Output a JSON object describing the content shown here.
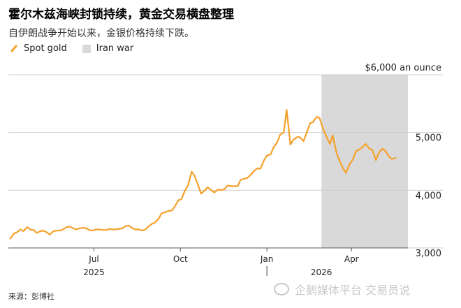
{
  "title": "霍尔木兹海峡封锁持续，黄金交易横盘整理",
  "subtitle": "自伊朗战争开始以来，金银价格持续下跌。",
  "legend": {
    "series_label": "Spot gold",
    "shade_label": "Iran war"
  },
  "source": "来源：彭博社",
  "watermark": "企鹅媒体平台 交易员说",
  "colors": {
    "line": "#f5a02a",
    "shade": "#d9d9d9",
    "grid": "#cccccc",
    "axis": "#555555"
  },
  "chart_data": {
    "type": "line",
    "title": "霍尔木兹海峡封锁持续，黄金交易横盘整理",
    "subtitle": "自伊朗战争开始以来，金银价格持续下跌。",
    "unit_label": "$6,000 an ounce",
    "ylim": [
      3000,
      6000
    ],
    "yticks": [
      {
        "value": 6000,
        "label": "$6,000 an ounce"
      },
      {
        "value": 5000,
        "label": "5,000"
      },
      {
        "value": 4000,
        "label": "4,000"
      },
      {
        "value": 3000,
        "label": "3,000"
      }
    ],
    "xlim": [
      "2025-04-01",
      "2026-05-31"
    ],
    "xticks": [
      {
        "date": "2025-07-01",
        "label": "Jul"
      },
      {
        "date": "2025-10-01",
        "label": "Oct"
      },
      {
        "date": "2026-01-01",
        "label": "Jan"
      },
      {
        "date": "2026-04-01",
        "label": "Apr"
      }
    ],
    "year_labels": [
      {
        "date": "2025-07-01",
        "label": "2025"
      },
      {
        "date": "2026-02-28",
        "label": "2026"
      }
    ],
    "year_divider": "2026-01-01",
    "shaded_period": {
      "label": "Iran war",
      "start": "2026-02-28",
      "end": "2026-05-31"
    },
    "grid": true,
    "legend_position": "top-left",
    "series": [
      {
        "name": "Spot gold",
        "x": [
          "2025-04-03",
          "2025-04-07",
          "2025-04-10",
          "2025-04-14",
          "2025-04-17",
          "2025-04-21",
          "2025-04-24",
          "2025-04-28",
          "2025-05-01",
          "2025-05-05",
          "2025-05-08",
          "2025-05-12",
          "2025-05-15",
          "2025-05-19",
          "2025-05-22",
          "2025-05-26",
          "2025-05-29",
          "2025-06-02",
          "2025-06-05",
          "2025-06-09",
          "2025-06-12",
          "2025-06-16",
          "2025-06-19",
          "2025-06-23",
          "2025-06-26",
          "2025-06-30",
          "2025-07-03",
          "2025-07-07",
          "2025-07-10",
          "2025-07-14",
          "2025-07-17",
          "2025-07-21",
          "2025-07-24",
          "2025-07-28",
          "2025-07-31",
          "2025-08-04",
          "2025-08-07",
          "2025-08-11",
          "2025-08-14",
          "2025-08-18",
          "2025-08-21",
          "2025-08-25",
          "2025-08-28",
          "2025-09-01",
          "2025-09-04",
          "2025-09-08",
          "2025-09-11",
          "2025-09-15",
          "2025-09-18",
          "2025-09-22",
          "2025-09-25",
          "2025-09-29",
          "2025-10-02",
          "2025-10-06",
          "2025-10-09",
          "2025-10-13",
          "2025-10-16",
          "2025-10-20",
          "2025-10-23",
          "2025-10-27",
          "2025-10-30",
          "2025-11-03",
          "2025-11-06",
          "2025-11-10",
          "2025-11-13",
          "2025-11-17",
          "2025-11-20",
          "2025-11-24",
          "2025-11-27",
          "2025-12-01",
          "2025-12-04",
          "2025-12-08",
          "2025-12-11",
          "2025-12-15",
          "2025-12-18",
          "2025-12-22",
          "2025-12-25",
          "2025-12-29",
          "2026-01-01",
          "2026-01-05",
          "2026-01-08",
          "2026-01-12",
          "2026-01-15",
          "2026-01-19",
          "2026-01-22",
          "2026-01-26",
          "2026-01-29",
          "2026-02-02",
          "2026-02-05",
          "2026-02-09",
          "2026-02-12",
          "2026-02-16",
          "2026-02-19",
          "2026-02-23",
          "2026-02-26",
          "2026-03-02",
          "2026-03-05",
          "2026-03-09",
          "2026-03-12",
          "2026-03-16",
          "2026-03-19",
          "2026-03-23",
          "2026-03-26",
          "2026-03-30",
          "2026-04-02",
          "2026-04-06",
          "2026-04-09",
          "2026-04-13",
          "2026-04-16",
          "2026-04-20",
          "2026-04-23",
          "2026-04-27",
          "2026-04-30",
          "2026-05-04",
          "2026-05-07",
          "2026-05-11",
          "2026-05-14",
          "2026-05-18"
        ],
        "y": [
          3160,
          3250,
          3270,
          3320,
          3290,
          3360,
          3320,
          3310,
          3260,
          3290,
          3300,
          3270,
          3230,
          3290,
          3300,
          3300,
          3320,
          3360,
          3370,
          3340,
          3320,
          3340,
          3350,
          3340,
          3310,
          3300,
          3320,
          3320,
          3310,
          3310,
          3330,
          3320,
          3320,
          3330,
          3340,
          3380,
          3390,
          3340,
          3320,
          3320,
          3300,
          3320,
          3370,
          3420,
          3440,
          3510,
          3600,
          3620,
          3640,
          3650,
          3720,
          3830,
          3840,
          4000,
          4080,
          4320,
          4250,
          4080,
          3940,
          4000,
          4050,
          4000,
          3960,
          4010,
          4000,
          4020,
          4080,
          4070,
          4070,
          4070,
          4180,
          4200,
          4210,
          4270,
          4330,
          4380,
          4370,
          4520,
          4600,
          4620,
          4740,
          4830,
          4960,
          5000,
          5390,
          4790,
          4870,
          4920,
          4920,
          4850,
          4980,
          5160,
          5180,
          5270,
          5250,
          5050,
          4940,
          4800,
          4950,
          4650,
          4520,
          4380,
          4300,
          4450,
          4520,
          4680,
          4700,
          4750,
          4800,
          4720,
          4700,
          4520,
          4650,
          4720,
          4680,
          4580,
          4540,
          4560
        ]
      }
    ]
  }
}
